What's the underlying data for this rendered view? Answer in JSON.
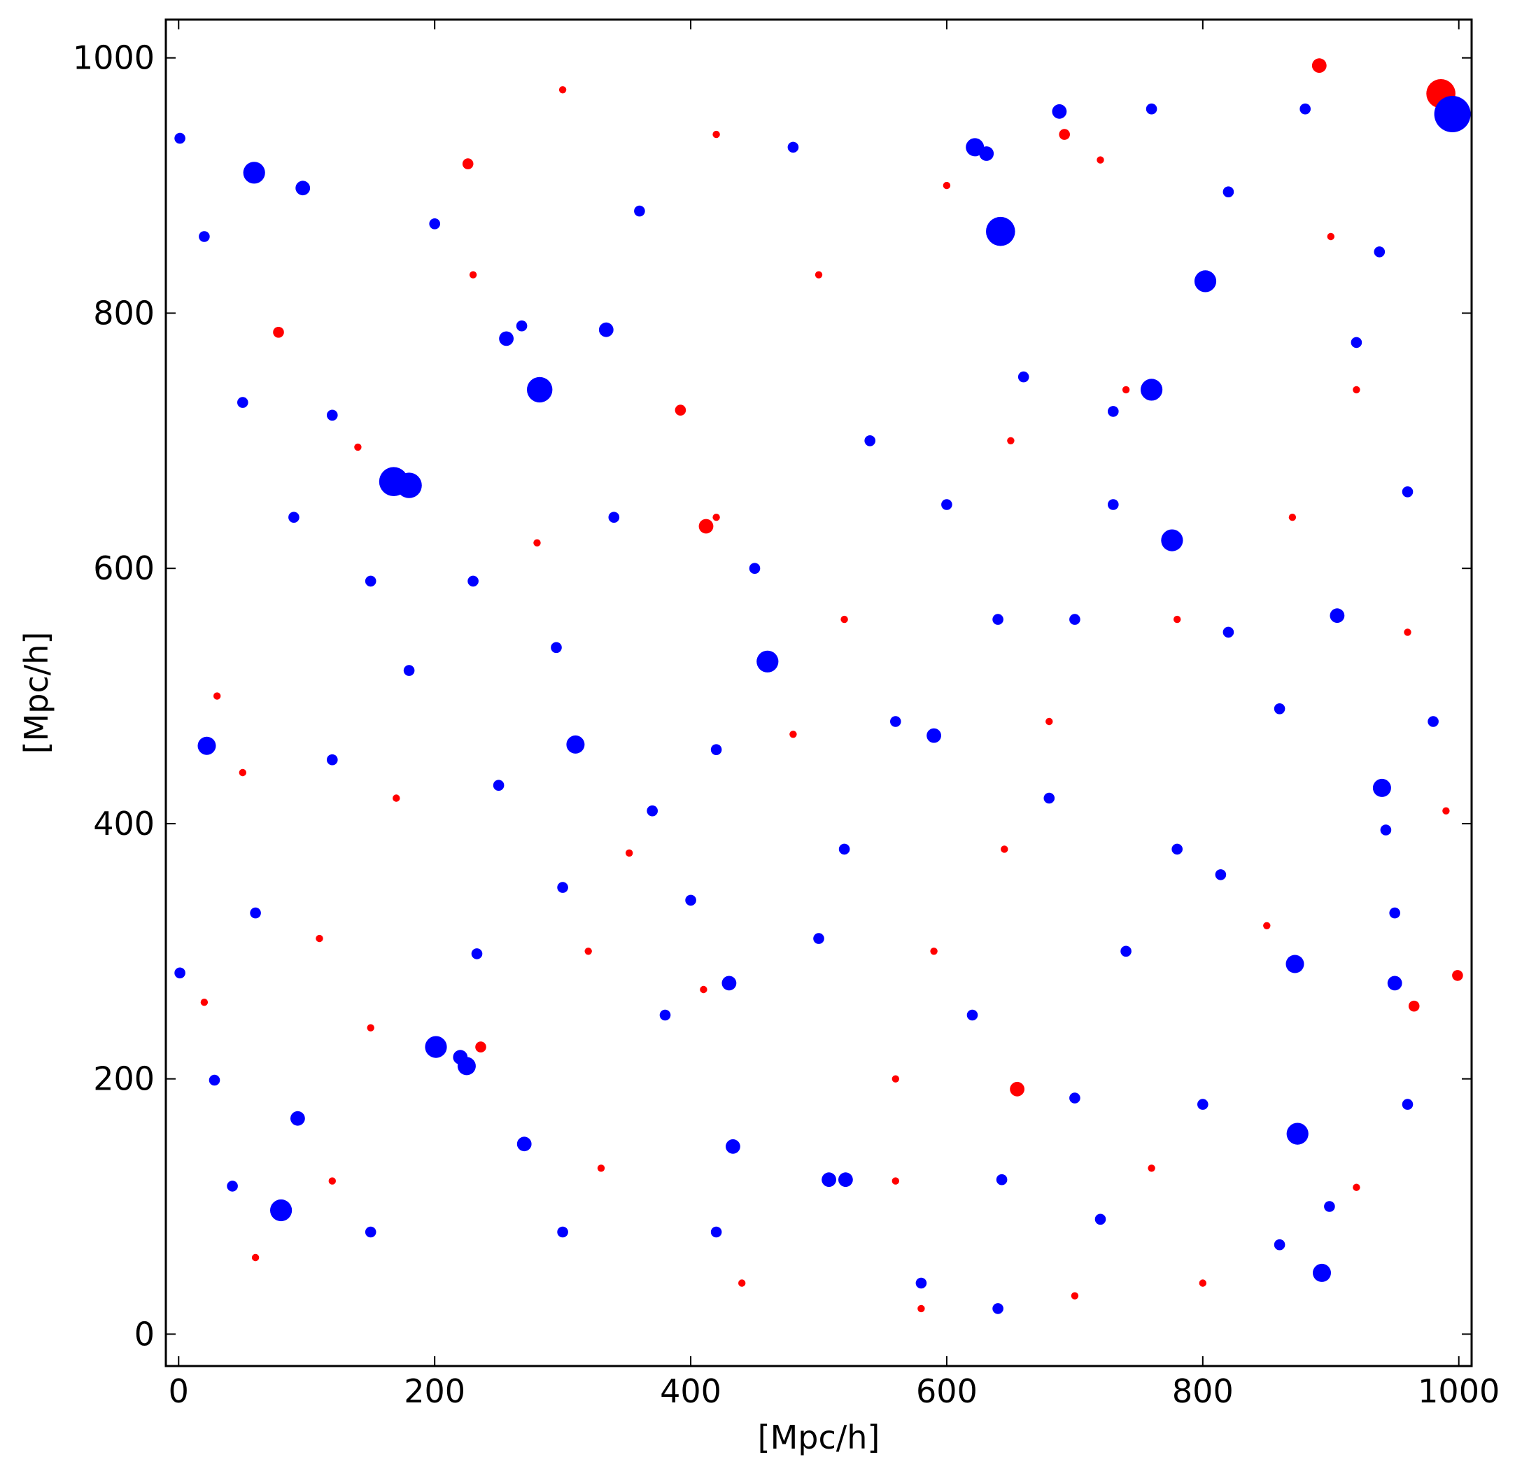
{
  "chart_data": {
    "type": "scatter",
    "title": "",
    "xlabel": "[Mpc/h]",
    "ylabel": "[Mpc/h]",
    "xlim": [
      -10,
      1010
    ],
    "ylim": [
      -25,
      1030
    ],
    "xticks": [
      0,
      200,
      400,
      600,
      800,
      1000
    ],
    "yticks": [
      0,
      200,
      400,
      600,
      800,
      1000
    ],
    "grid": false,
    "legend": "none",
    "colors": {
      "red": "#ff0000",
      "blue": "#0000ff"
    },
    "series": [
      {
        "color": "red",
        "points": [
          [
            986,
            972,
            8
          ],
          [
            891,
            994,
            4
          ],
          [
            655,
            192,
            4
          ],
          [
            412,
            633,
            4
          ],
          [
            999,
            281,
            3
          ],
          [
            78,
            785,
            3
          ],
          [
            965,
            257,
            3
          ],
          [
            392,
            724,
            3
          ],
          [
            692,
            940,
            3
          ],
          [
            226,
            917,
            3
          ],
          [
            236,
            225,
            3
          ],
          [
            560,
            200,
            2
          ],
          [
            140,
            695,
            2
          ],
          [
            920,
            115,
            2
          ],
          [
            580,
            20,
            2
          ],
          [
            410,
            270,
            2
          ],
          [
            352,
            377,
            2
          ],
          [
            645,
            380,
            2
          ],
          [
            878,
            160,
            2
          ],
          [
            50,
            440,
            2
          ],
          [
            300,
            975,
            2
          ],
          [
            720,
            920,
            2
          ],
          [
            420,
            640,
            2
          ],
          [
            520,
            560,
            2
          ],
          [
            760,
            130,
            2
          ],
          [
            990,
            410,
            2
          ],
          [
            30,
            500,
            2
          ],
          [
            700,
            30,
            2
          ],
          [
            110,
            310,
            2
          ],
          [
            870,
            640,
            2
          ],
          [
            600,
            900,
            2
          ],
          [
            850,
            320,
            2
          ],
          [
            330,
            130,
            2
          ],
          [
            150,
            240,
            2
          ],
          [
            480,
            470,
            2
          ],
          [
            650,
            700,
            2
          ],
          [
            230,
            830,
            2
          ],
          [
            780,
            560,
            2
          ],
          [
            920,
            740,
            2
          ],
          [
            560,
            120,
            2
          ],
          [
            60,
            60,
            2
          ],
          [
            440,
            40,
            2
          ],
          [
            680,
            480,
            2
          ],
          [
            800,
            40,
            2
          ],
          [
            960,
            550,
            2
          ],
          [
            320,
            300,
            2
          ],
          [
            500,
            830,
            2
          ],
          [
            170,
            420,
            2
          ],
          [
            740,
            740,
            2
          ],
          [
            420,
            940,
            2
          ],
          [
            120,
            120,
            2
          ],
          [
            900,
            860,
            2
          ],
          [
            590,
            300,
            2
          ],
          [
            280,
            620,
            2
          ],
          [
            20,
            260,
            2
          ]
        ]
      },
      {
        "color": "blue",
        "points": [
          [
            995,
            956,
            10
          ],
          [
            642,
            864,
            8
          ],
          [
            168,
            668,
            8
          ],
          [
            180,
            665,
            7
          ],
          [
            282,
            740,
            7
          ],
          [
            59,
            910,
            6
          ],
          [
            80,
            97,
            6
          ],
          [
            201,
            225,
            6
          ],
          [
            460,
            527,
            6
          ],
          [
            776,
            622,
            6
          ],
          [
            874,
            157,
            6
          ],
          [
            760,
            740,
            6
          ],
          [
            802,
            825,
            6
          ],
          [
            310,
            462,
            5
          ],
          [
            225,
            210,
            5
          ],
          [
            622,
            930,
            5
          ],
          [
            872,
            290,
            5
          ],
          [
            893,
            48,
            5
          ],
          [
            940,
            428,
            5
          ],
          [
            22,
            461,
            5
          ],
          [
            430,
            275,
            4
          ],
          [
            521,
            121,
            4
          ],
          [
            270,
            149,
            4
          ],
          [
            97,
            898,
            4
          ],
          [
            256,
            780,
            4
          ],
          [
            334,
            787,
            4
          ],
          [
            433,
            147,
            4
          ],
          [
            905,
            563,
            4
          ],
          [
            688,
            958,
            4
          ],
          [
            950,
            275,
            4
          ],
          [
            631,
            925,
            4
          ],
          [
            220,
            217,
            4
          ],
          [
            93,
            169,
            4
          ],
          [
            590,
            469,
            4
          ],
          [
            508,
            121,
            4
          ],
          [
            1,
            283,
            3
          ],
          [
            1,
            937,
            3
          ],
          [
            42,
            116,
            3
          ],
          [
            28,
            199,
            3
          ],
          [
            814,
            360,
            3
          ],
          [
            730,
            723,
            3
          ],
          [
            943,
            395,
            3
          ],
          [
            899,
            100,
            3
          ],
          [
            820,
            895,
            3
          ],
          [
            938,
            848,
            3
          ],
          [
            420,
            458,
            3
          ],
          [
            268,
            790,
            3
          ],
          [
            295,
            538,
            3
          ],
          [
            233,
            298,
            3
          ],
          [
            643,
            121,
            3
          ],
          [
            700,
            185,
            3
          ],
          [
            800,
            180,
            3
          ],
          [
            920,
            777,
            3
          ],
          [
            120,
            720,
            3
          ],
          [
            50,
            730,
            3
          ],
          [
            370,
            410,
            3
          ],
          [
            600,
            650,
            3
          ],
          [
            540,
            700,
            3
          ],
          [
            660,
            750,
            3
          ],
          [
            700,
            560,
            3
          ],
          [
            860,
            490,
            3
          ],
          [
            980,
            480,
            3
          ],
          [
            60,
            330,
            3
          ],
          [
            180,
            520,
            3
          ],
          [
            420,
            80,
            3
          ],
          [
            580,
            40,
            3
          ],
          [
            720,
            90,
            3
          ],
          [
            860,
            70,
            3
          ],
          [
            960,
            180,
            3
          ],
          [
            300,
            80,
            3
          ],
          [
            150,
            80,
            3
          ],
          [
            250,
            430,
            3
          ],
          [
            380,
            250,
            3
          ],
          [
            500,
            310,
            3
          ],
          [
            620,
            250,
            3
          ],
          [
            740,
            300,
            3
          ],
          [
            960,
            660,
            3
          ],
          [
            880,
            960,
            3
          ],
          [
            760,
            960,
            3
          ],
          [
            480,
            930,
            3
          ],
          [
            360,
            880,
            3
          ],
          [
            200,
            870,
            3
          ],
          [
            20,
            860,
            3
          ],
          [
            90,
            640,
            3
          ],
          [
            230,
            590,
            3
          ],
          [
            340,
            640,
            3
          ],
          [
            450,
            600,
            3
          ],
          [
            560,
            480,
            3
          ],
          [
            680,
            420,
            3
          ],
          [
            780,
            380,
            3
          ],
          [
            950,
            330,
            3
          ],
          [
            520,
            380,
            3
          ],
          [
            400,
            340,
            3
          ],
          [
            120,
            450,
            3
          ],
          [
            640,
            560,
            3
          ],
          [
            730,
            650,
            3
          ],
          [
            820,
            550,
            3
          ],
          [
            300,
            350,
            3
          ],
          [
            150,
            590,
            3
          ],
          [
            640,
            20,
            3
          ]
        ]
      }
    ]
  }
}
